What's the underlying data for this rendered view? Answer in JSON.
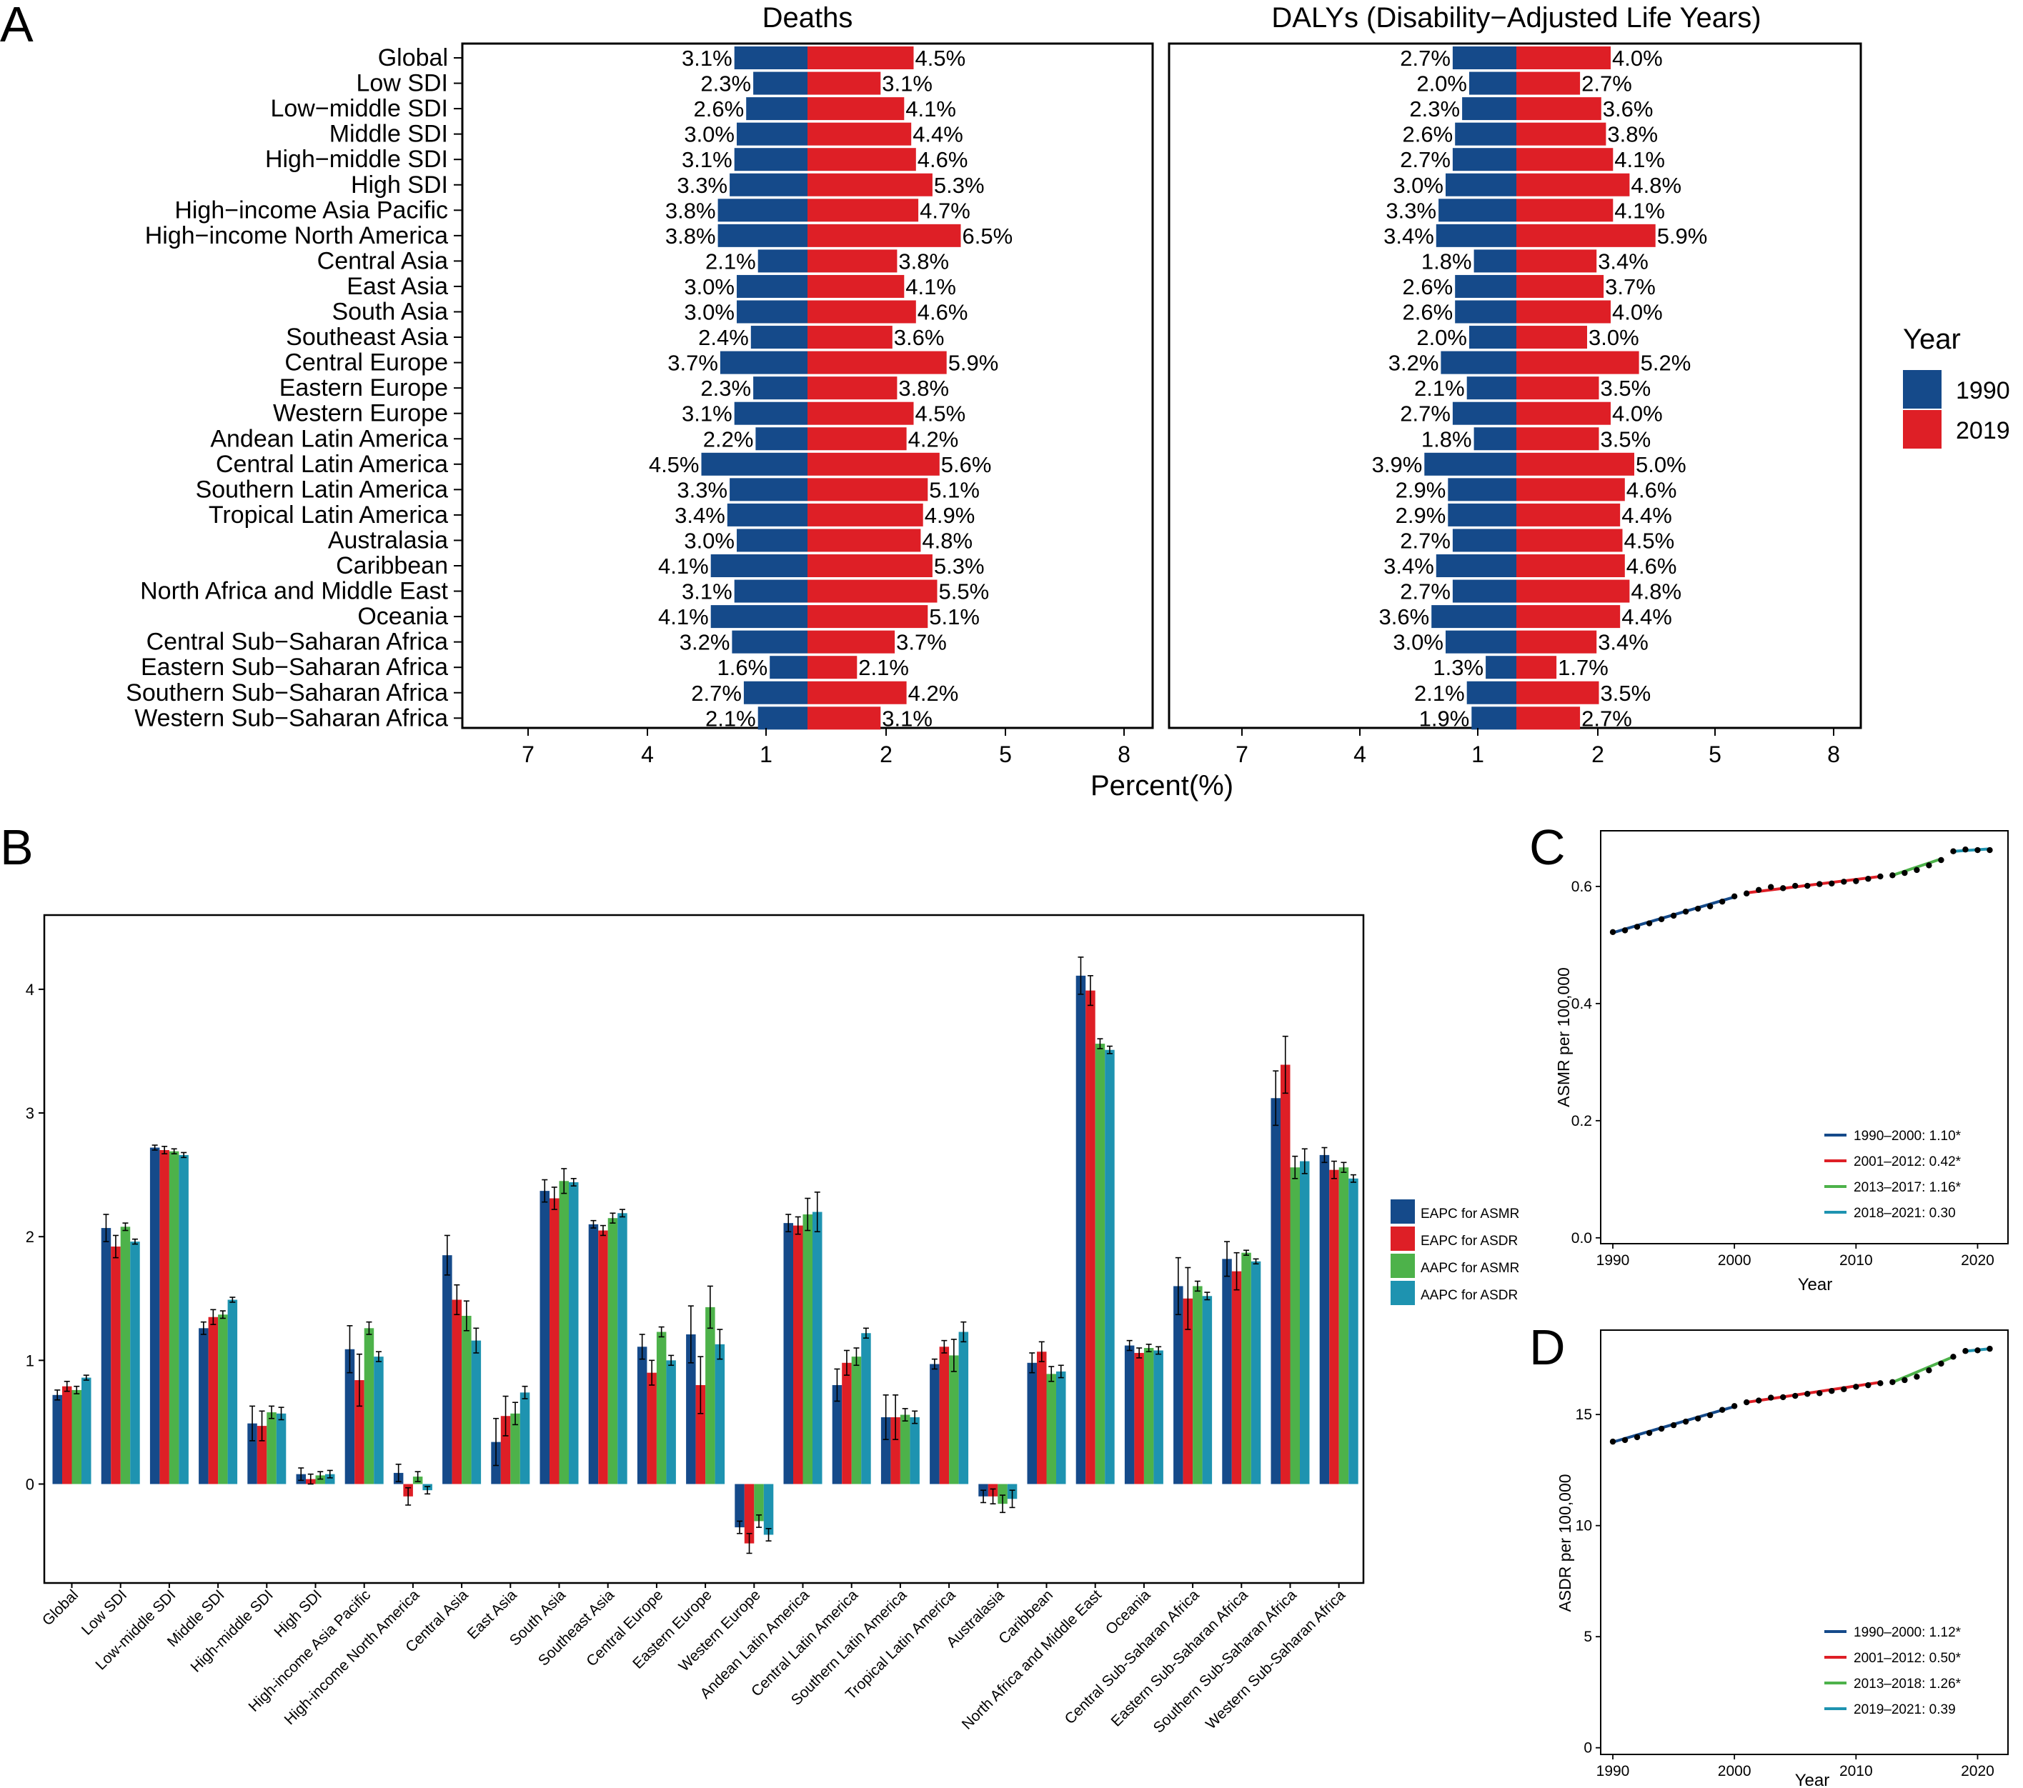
{
  "colors": {
    "y1990": "#154a8a",
    "y2019": "#de1f26",
    "eapc_asmr": "#154a8a",
    "eapc_asdr": "#de1f26",
    "aapc_asmr": "#4db24a",
    "aapc_asdr": "#1e93b0",
    "seg1": "#154a8a",
    "seg2": "#de1f26",
    "seg3": "#4db24a",
    "seg4": "#1e93b0"
  },
  "panels": {
    "A": "A",
    "B": "B",
    "C": "C",
    "D": "D"
  },
  "chart_data": [
    {
      "type": "bar",
      "orientation": "horizontal-diverging",
      "panel": "A",
      "title_left": "Deaths",
      "title_right": "DALYs (Disability−Adjusted Life Years)",
      "xlabel": "Percent(%)",
      "x_tick_labels": [
        "7",
        "4",
        "1",
        "2",
        "5",
        "8"
      ],
      "legend_title": "Year",
      "legend": [
        "1990",
        "2019"
      ],
      "categories": [
        "Global",
        "Low SDI",
        "Low−middle SDI",
        "Middle SDI",
        "High−middle SDI",
        "High SDI",
        "High−income Asia Pacific",
        "High−income North America",
        "Central Asia",
        "East Asia",
        "South Asia",
        "Southeast Asia",
        "Central Europe",
        "Eastern Europe",
        "Western Europe",
        "Andean Latin America",
        "Central Latin America",
        "Southern Latin America",
        "Tropical Latin America",
        "Australasia",
        "Caribbean",
        "North Africa and Middle East",
        "Oceania",
        "Central Sub−Saharan Africa",
        "Eastern Sub−Saharan Africa",
        "Southern Sub−Saharan Africa",
        "Western Sub−Saharan Africa"
      ],
      "deaths_1990": [
        3.1,
        2.3,
        2.6,
        3.0,
        3.1,
        3.3,
        3.8,
        3.8,
        2.1,
        3.0,
        3.0,
        2.4,
        3.7,
        2.3,
        3.1,
        2.2,
        4.5,
        3.3,
        3.4,
        3.0,
        4.1,
        3.1,
        4.1,
        3.2,
        1.6,
        2.7,
        2.1
      ],
      "deaths_2019": [
        4.5,
        3.1,
        4.1,
        4.4,
        4.6,
        5.3,
        4.7,
        6.5,
        3.8,
        4.1,
        4.6,
        3.6,
        5.9,
        3.8,
        4.5,
        4.2,
        5.6,
        5.1,
        4.9,
        4.8,
        5.3,
        5.5,
        5.1,
        3.7,
        2.1,
        4.2,
        3.1
      ],
      "dalys_1990": [
        2.7,
        2.0,
        2.3,
        2.6,
        2.7,
        3.0,
        3.3,
        3.4,
        1.8,
        2.6,
        2.6,
        2.0,
        3.2,
        2.1,
        2.7,
        1.8,
        3.9,
        2.9,
        2.9,
        2.7,
        3.4,
        2.7,
        3.6,
        3.0,
        1.3,
        2.1,
        1.9
      ],
      "dalys_2019": [
        4.0,
        2.7,
        3.6,
        3.8,
        4.1,
        4.8,
        4.1,
        5.9,
        3.4,
        3.7,
        4.0,
        3.0,
        5.2,
        3.5,
        4.0,
        3.5,
        5.0,
        4.6,
        4.4,
        4.5,
        4.6,
        4.8,
        4.4,
        3.4,
        1.7,
        3.5,
        2.7
      ]
    },
    {
      "type": "bar",
      "panel": "B",
      "ylim": [
        -0.8,
        4.6
      ],
      "y_ticks": [
        0,
        1,
        2,
        3,
        4
      ],
      "categories": [
        "Global",
        "Low SDI",
        "Low-middle SDI",
        "Middle SDI",
        "High-middle SDI",
        "High SDI",
        "High-income Asia Pacific",
        "High-income North America",
        "Central Asia",
        "East Asia",
        "South Asia",
        "Southeast Asia",
        "Central Europe",
        "Eastern Europe",
        "Western Europe",
        "Andean Latin America",
        "Central Latin America",
        "Southern Latin America",
        "Tropical Latin America",
        "Australasia",
        "Caribbean",
        "North Africa and Middle East",
        "Oceania",
        "Central Sub-Saharan Africa",
        "Eastern Sub-Saharan Africa",
        "Southern Sub-Saharan Africa",
        "Western Sub-Saharan Africa"
      ],
      "series": [
        {
          "name": "EAPC for ASMR",
          "values": [
            0.72,
            2.07,
            2.72,
            1.26,
            0.49,
            0.08,
            1.09,
            0.09,
            1.85,
            0.34,
            2.37,
            2.1,
            1.11,
            1.21,
            -0.35,
            2.11,
            0.8,
            0.54,
            0.97,
            -0.1,
            0.98,
            4.11,
            1.12,
            1.6,
            1.82,
            3.12,
            2.66
          ],
          "err": [
            0.04,
            0.11,
            0.02,
            0.05,
            0.14,
            0.05,
            0.19,
            0.07,
            0.16,
            0.19,
            0.09,
            0.03,
            0.1,
            0.23,
            0.05,
            0.07,
            0.13,
            0.18,
            0.04,
            0.05,
            0.08,
            0.15,
            0.04,
            0.23,
            0.14,
            0.22,
            0.06
          ]
        },
        {
          "name": "EAPC for ASDR",
          "values": [
            0.79,
            1.92,
            2.7,
            1.35,
            0.47,
            0.04,
            0.84,
            -0.1,
            1.49,
            0.55,
            2.31,
            2.05,
            0.9,
            0.8,
            -0.48,
            2.09,
            0.98,
            0.54,
            1.11,
            -0.1,
            1.07,
            3.99,
            1.06,
            1.5,
            1.72,
            3.39,
            2.54
          ],
          "err": [
            0.04,
            0.09,
            0.03,
            0.06,
            0.12,
            0.04,
            0.21,
            0.07,
            0.12,
            0.16,
            0.09,
            0.04,
            0.1,
            0.23,
            0.08,
            0.07,
            0.1,
            0.18,
            0.05,
            0.06,
            0.08,
            0.12,
            0.04,
            0.25,
            0.15,
            0.23,
            0.07
          ]
        },
        {
          "name": "AAPC for ASMR",
          "values": [
            0.76,
            2.08,
            2.69,
            1.37,
            0.58,
            0.07,
            1.26,
            0.06,
            1.36,
            0.57,
            2.45,
            2.15,
            1.23,
            1.43,
            -0.3,
            2.18,
            1.03,
            0.56,
            1.04,
            -0.16,
            0.89,
            3.56,
            1.1,
            1.6,
            1.87,
            2.56,
            2.56
          ],
          "err": [
            0.03,
            0.03,
            0.02,
            0.03,
            0.05,
            0.03,
            0.05,
            0.04,
            0.12,
            0.09,
            0.1,
            0.04,
            0.04,
            0.17,
            0.05,
            0.13,
            0.07,
            0.05,
            0.13,
            0.07,
            0.06,
            0.04,
            0.03,
            0.04,
            0.02,
            0.09,
            0.04
          ]
        },
        {
          "name": "AAPC for ASDR",
          "values": [
            0.86,
            1.96,
            2.66,
            1.49,
            0.57,
            0.08,
            1.03,
            -0.05,
            1.16,
            0.74,
            2.44,
            2.19,
            1.0,
            1.13,
            -0.41,
            2.2,
            1.22,
            0.54,
            1.23,
            -0.12,
            0.91,
            3.51,
            1.08,
            1.52,
            1.8,
            2.61,
            2.47
          ],
          "err": [
            0.02,
            0.02,
            0.02,
            0.02,
            0.05,
            0.03,
            0.04,
            0.03,
            0.1,
            0.05,
            0.03,
            0.03,
            0.04,
            0.12,
            0.05,
            0.16,
            0.04,
            0.05,
            0.08,
            0.07,
            0.05,
            0.03,
            0.03,
            0.03,
            0.02,
            0.1,
            0.03
          ]
        }
      ]
    },
    {
      "type": "line",
      "panel": "C",
      "xlabel": "Year",
      "ylabel": "ASMR  per 100,000",
      "xlim": [
        1989,
        2022.5
      ],
      "ylim": [
        -0.01,
        0.695
      ],
      "x_ticks": [
        1990,
        2000,
        2010,
        2020
      ],
      "y_ticks": [
        0.0,
        0.2,
        0.4,
        0.6
      ],
      "y_tick_labels": [
        "0.0",
        "0.2",
        "0.4",
        "0.6"
      ],
      "x": [
        1990,
        1991,
        1992,
        1993,
        1994,
        1995,
        1996,
        1997,
        1998,
        1999,
        2000,
        2001,
        2002,
        2003,
        2004,
        2005,
        2006,
        2007,
        2008,
        2009,
        2010,
        2011,
        2012,
        2013,
        2014,
        2015,
        2016,
        2017,
        2018,
        2019,
        2020,
        2021
      ],
      "y": [
        0.522,
        0.525,
        0.531,
        0.537,
        0.544,
        0.55,
        0.557,
        0.562,
        0.566,
        0.574,
        0.583,
        0.588,
        0.594,
        0.599,
        0.597,
        0.601,
        0.601,
        0.604,
        0.605,
        0.608,
        0.609,
        0.613,
        0.617,
        0.619,
        0.623,
        0.628,
        0.636,
        0.645,
        0.66,
        0.663,
        0.662,
        0.662
      ],
      "segments": [
        {
          "label": "1990–2000: 1.10*",
          "x0": 1990,
          "x1": 2000,
          "y0": 0.521,
          "y1": 0.582
        },
        {
          "label": "2001–2012: 0.42*",
          "x0": 2001,
          "x1": 2012,
          "y0": 0.589,
          "y1": 0.617
        },
        {
          "label": "2013–2017: 1.16*",
          "x0": 2013,
          "x1": 2017,
          "y0": 0.619,
          "y1": 0.647
        },
        {
          "label": "2018–2021: 0.30",
          "x0": 2018,
          "x1": 2021,
          "y0": 0.66,
          "y1": 0.664
        }
      ]
    },
    {
      "type": "line",
      "panel": "D",
      "xlabel": "Year",
      "ylabel": "ASDR  per 100,000",
      "xlim": [
        1989,
        2022.5
      ],
      "ylim": [
        -0.3,
        18.8
      ],
      "x_ticks": [
        1990,
        2000,
        2010,
        2020
      ],
      "y_ticks": [
        0,
        5,
        10,
        15
      ],
      "y_tick_labels": [
        "0",
        "5",
        "10",
        "15"
      ],
      "x": [
        1990,
        1991,
        1992,
        1993,
        1994,
        1995,
        1996,
        1997,
        1998,
        1999,
        2000,
        2001,
        2002,
        2003,
        2004,
        2005,
        2006,
        2007,
        2008,
        2009,
        2010,
        2011,
        2012,
        2013,
        2014,
        2015,
        2016,
        2017,
        2018,
        2019,
        2020,
        2021
      ],
      "y": [
        13.78,
        13.85,
        13.98,
        14.17,
        14.36,
        14.52,
        14.68,
        14.82,
        14.97,
        15.21,
        15.38,
        15.55,
        15.63,
        15.76,
        15.78,
        15.84,
        15.93,
        15.96,
        16.06,
        16.14,
        16.25,
        16.32,
        16.41,
        16.46,
        16.55,
        16.7,
        16.99,
        17.29,
        17.6,
        17.86,
        17.89,
        17.96
      ],
      "segments": [
        {
          "label": "1990–2000: 1.12*",
          "x0": 1990,
          "x1": 2000,
          "y0": 13.76,
          "y1": 15.36
        },
        {
          "label": "2001–2012: 0.50*",
          "x0": 2001,
          "x1": 2012,
          "y0": 15.55,
          "y1": 16.45
        },
        {
          "label": "2013–2018: 1.26*",
          "x0": 2013,
          "x1": 2018,
          "y0": 16.45,
          "y1": 17.6
        },
        {
          "label": "2019–2021: 0.39",
          "x0": 2019,
          "x1": 2021,
          "y0": 17.85,
          "y1": 17.96
        }
      ]
    }
  ]
}
